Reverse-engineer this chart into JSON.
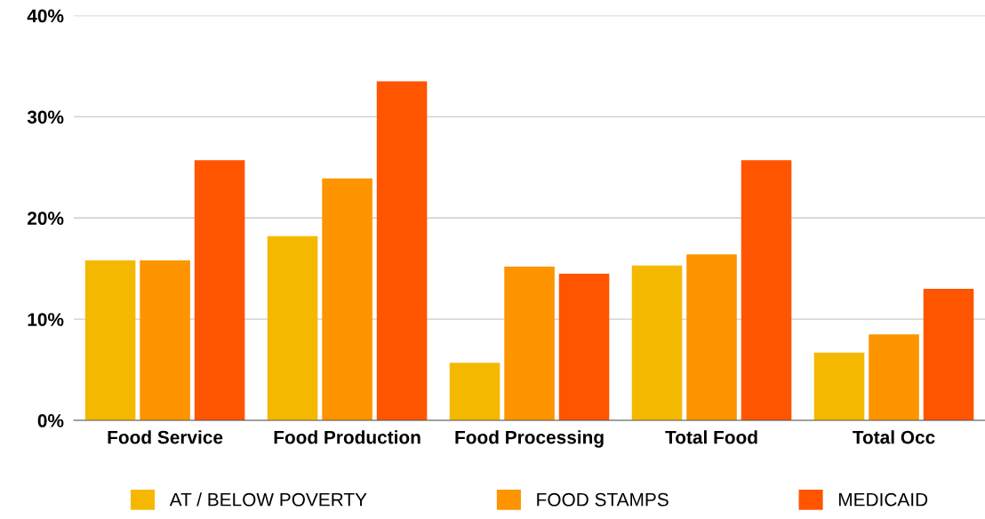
{
  "chart_data": {
    "type": "bar",
    "categories": [
      "Food Service",
      "Food Production",
      "Food Processing",
      "Total Food",
      "Total Occ"
    ],
    "series": [
      {
        "name": "AT / BELOW POVERTY",
        "color": "#f5b800",
        "values": [
          15.8,
          18.2,
          5.7,
          15.3,
          6.7
        ]
      },
      {
        "name": "FOOD STAMPS",
        "color": "#fd9400",
        "values": [
          15.8,
          23.9,
          15.2,
          16.4,
          8.5
        ]
      },
      {
        "name": "MEDICAID",
        "color": "#ff5500",
        "values": [
          25.7,
          33.5,
          14.5,
          25.7,
          13.0
        ]
      }
    ],
    "ylim": [
      0,
      40
    ],
    "yticks": [
      {
        "value": 0,
        "label": "0%"
      },
      {
        "value": 10,
        "label": "10%"
      },
      {
        "value": 20,
        "label": "20%"
      },
      {
        "value": 30,
        "label": "30%"
      },
      {
        "value": 40,
        "label": "40%"
      }
    ],
    "grid": "y",
    "legend": "bottom"
  }
}
